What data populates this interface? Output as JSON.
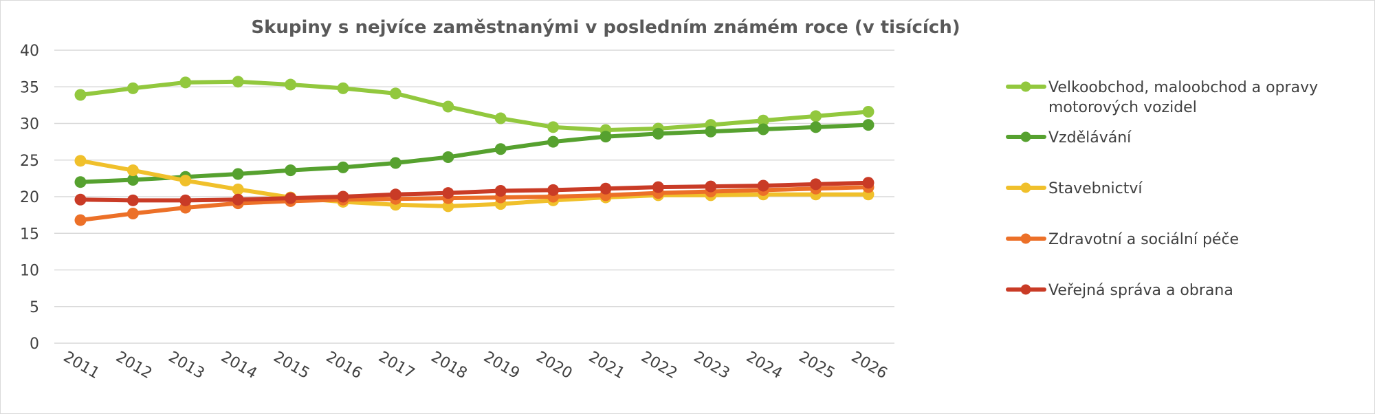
{
  "chart_data": {
    "type": "line",
    "title": "Skupiny s nejvíce zaměstnanými v posledním známém roce (v tisících)",
    "xlabel": "",
    "ylabel": "",
    "ylim": [
      0,
      40
    ],
    "yticks": [
      "0",
      "5",
      "10",
      "15",
      "20",
      "25",
      "30",
      "35",
      "40"
    ],
    "categories": [
      "2011",
      "2012",
      "2013",
      "2014",
      "2015",
      "2016",
      "2017",
      "2018",
      "2019",
      "2020",
      "2021",
      "2022",
      "2023",
      "2024",
      "2025",
      "2026"
    ],
    "grid": "horizontal",
    "legend_position": "right",
    "series": [
      {
        "name": "Velkoobchod, maloobchod a opravy motorových vozidel",
        "legend_lines": [
          "Velkoobchod, maloobchod a opravy",
          "motorových vozidel"
        ],
        "color": "#92c83e",
        "values": [
          33.9,
          34.8,
          35.6,
          35.7,
          35.3,
          34.8,
          34.1,
          32.3,
          30.7,
          29.5,
          29.1,
          29.3,
          29.8,
          30.4,
          31.0,
          31.6
        ]
      },
      {
        "name": "Vzdělávání",
        "legend_lines": [
          "Vzdělávání"
        ],
        "color": "#56a12f",
        "values": [
          22.0,
          22.3,
          22.7,
          23.1,
          23.6,
          24.0,
          24.6,
          25.4,
          26.5,
          27.5,
          28.2,
          28.6,
          28.9,
          29.2,
          29.5,
          29.8
        ]
      },
      {
        "name": "Stavebnictví",
        "legend_lines": [
          "Stavebnictví"
        ],
        "color": "#f0c02b",
        "values": [
          24.9,
          23.6,
          22.2,
          21.0,
          19.9,
          19.3,
          18.9,
          18.7,
          19.0,
          19.5,
          19.9,
          20.2,
          20.2,
          20.3,
          20.3,
          20.3
        ]
      },
      {
        "name": "Zdravotní a sociální péče",
        "legend_lines": [
          "Zdravotní a sociální péče"
        ],
        "color": "#ec7028",
        "values": [
          16.8,
          17.7,
          18.5,
          19.1,
          19.4,
          19.6,
          19.7,
          19.8,
          19.9,
          20.0,
          20.2,
          20.5,
          20.7,
          20.9,
          21.1,
          21.3
        ]
      },
      {
        "name": "Veřejná správa a obrana",
        "legend_lines": [
          "Veřejná správa a obrana"
        ],
        "color": "#c93b26",
        "values": [
          19.6,
          19.5,
          19.5,
          19.6,
          19.8,
          20.0,
          20.3,
          20.5,
          20.8,
          20.9,
          21.1,
          21.3,
          21.4,
          21.5,
          21.7,
          21.9
        ]
      }
    ]
  }
}
